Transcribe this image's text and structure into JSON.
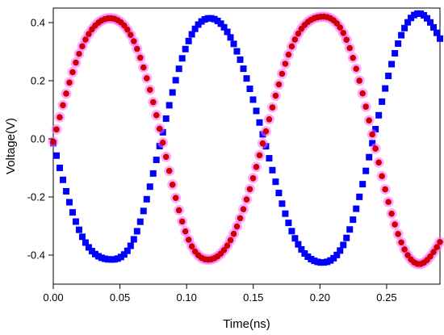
{
  "chart_data": {
    "type": "scatter",
    "title": "",
    "xlabel": "Time(ns)",
    "ylabel": "Voltage(V)",
    "xlim": [
      0,
      0.29
    ],
    "ylim": [
      -0.5,
      0.45
    ],
    "xticks": [
      "0.00",
      "0.05",
      "0.10",
      "0.15",
      "0.20",
      "0.25"
    ],
    "xtick_values": [
      0,
      0.05,
      0.1,
      0.15,
      0.2,
      0.25
    ],
    "yticks": [
      "-0.4",
      "-0.2",
      "0.0",
      "0.2",
      "0.4"
    ],
    "ytick_values": [
      -0.4,
      -0.2,
      0,
      0.2,
      0.4
    ],
    "grid": false,
    "legend": false,
    "series": [
      {
        "color": "#0000ff",
        "marker": "square",
        "x": [
          0.0,
          0.02,
          0.042,
          0.06,
          0.08,
          0.1,
          0.118,
          0.135,
          0.158,
          0.18,
          0.2,
          0.22,
          0.24,
          0.258,
          0.276,
          0.29
        ],
        "y": [
          -0.015,
          -0.32,
          -0.415,
          -0.35,
          -0.02,
          0.32,
          0.415,
          0.33,
          0.0,
          -0.33,
          -0.425,
          -0.34,
          0.0,
          0.32,
          0.43,
          0.345
        ]
      },
      {
        "color": "#cc0000",
        "marker": "circle",
        "halo_color": "#ff66ff",
        "x": [
          0.0,
          0.02,
          0.042,
          0.06,
          0.08,
          0.1,
          0.118,
          0.135,
          0.158,
          0.18,
          0.2,
          0.22,
          0.24,
          0.258,
          0.276,
          0.29
        ],
        "y": [
          -0.01,
          0.3,
          0.415,
          0.34,
          0.03,
          -0.33,
          -0.415,
          -0.33,
          0.0,
          0.33,
          0.42,
          0.34,
          0.0,
          -0.32,
          -0.43,
          -0.355
        ]
      }
    ]
  }
}
